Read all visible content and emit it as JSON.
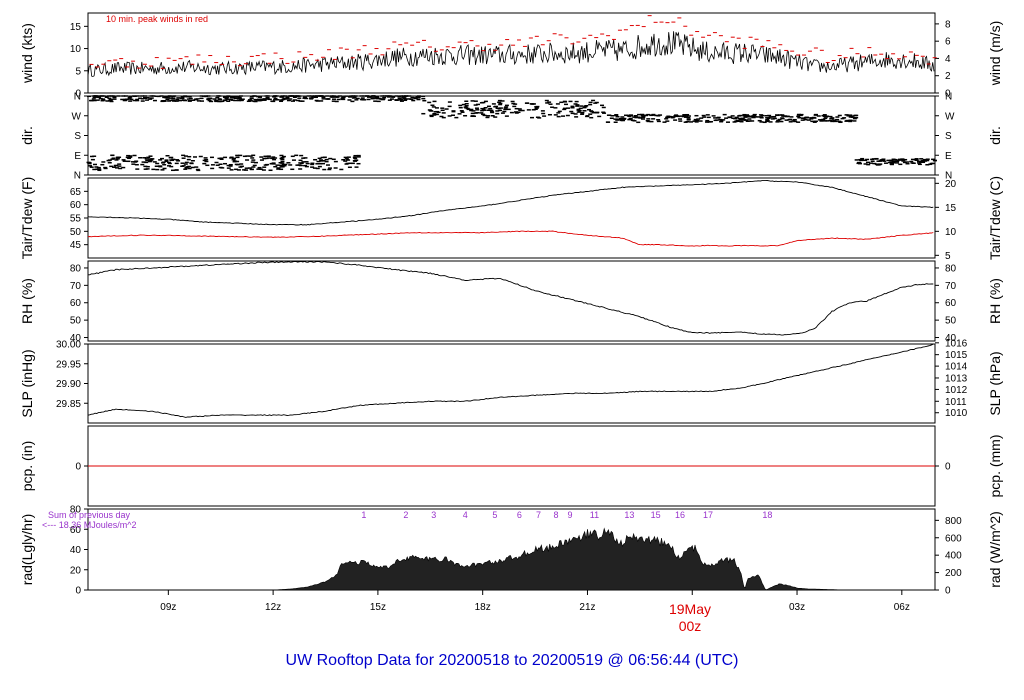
{
  "title": "UW Rooftop Data for 20200518  to  20200519 @ 06:56:44  (UTC)",
  "colors": {
    "title": "#0000cc",
    "red": "#dd0000",
    "purple": "#9933cc",
    "line": "#000000"
  },
  "x_axis": {
    "hour_start": 6.7,
    "hour_end": 30.95,
    "ticks": [
      {
        "hour": 9,
        "label": "09z"
      },
      {
        "hour": 12,
        "label": "12z"
      },
      {
        "hour": 15,
        "label": "15z"
      },
      {
        "hour": 18,
        "label": "18z"
      },
      {
        "hour": 21,
        "label": "21z"
      },
      {
        "hour": 24,
        "label": "00z"
      },
      {
        "hour": 27,
        "label": "03z"
      },
      {
        "hour": 30,
        "label": "06z"
      }
    ],
    "date_marker": {
      "hour": 24,
      "line1": "19May",
      "line2": "00z"
    }
  },
  "chart_data": [
    {
      "panel": "wind",
      "type": "line",
      "ylabel": "wind (kts)",
      "ylabel_right": "wind (m/s)",
      "ylim": [
        0,
        18
      ],
      "yticks": [
        0,
        5,
        10,
        15
      ],
      "yticks_right": [
        {
          "label": "0",
          "value": 0
        },
        {
          "label": "2",
          "value": 3.89
        },
        {
          "label": "4",
          "value": 7.78
        },
        {
          "label": "6",
          "value": 11.66
        },
        {
          "label": "8",
          "value": 15.55
        }
      ],
      "annotation": "10 min. peak winds in red",
      "series": [
        {
          "x": [
            6.7,
            7.5,
            8.5,
            9.5,
            10.5,
            11.5,
            12.5,
            13.5,
            14.5,
            15.5,
            16.5,
            17.5,
            18.5,
            19.5,
            20.5,
            21.5,
            22,
            22.5,
            23,
            23.5,
            24,
            24.5,
            25,
            25.5,
            26,
            26.5,
            27,
            27.5,
            28,
            28.5,
            29,
            29.5,
            30,
            30.5,
            30.95
          ],
          "y": [
            5,
            5.5,
            5.5,
            5.8,
            5.5,
            5.8,
            6,
            6.5,
            7,
            8,
            8.5,
            8.5,
            8.5,
            8.8,
            9,
            9.5,
            9.5,
            10.5,
            11.5,
            11,
            10,
            9,
            9,
            9,
            8.5,
            8,
            7,
            6,
            6,
            6.5,
            7,
            7.5,
            7.5,
            7,
            6
          ]
        },
        {
          "name": "peak",
          "x": [
            7,
            8,
            9,
            10,
            11,
            12,
            13,
            14,
            15,
            16,
            17,
            18,
            19,
            20,
            21,
            22,
            22.5,
            23,
            23.5,
            24,
            24.5,
            25,
            26,
            27,
            28,
            29,
            30,
            30.5
          ],
          "y": [
            6.5,
            7,
            7,
            7.5,
            7.5,
            8,
            8,
            9,
            10,
            10.5,
            10.5,
            11,
            11,
            12,
            12,
            14,
            15,
            17,
            16,
            14,
            13,
            12,
            11,
            9.5,
            8,
            9,
            9,
            8
          ]
        }
      ]
    },
    {
      "panel": "dir",
      "type": "scatter",
      "ylabel": "dir.",
      "ylabel_right": "dir.",
      "ylim": [
        0,
        360
      ],
      "yticks": [
        {
          "label": "N",
          "value": 0
        },
        {
          "label": "E",
          "value": 90
        },
        {
          "label": "S",
          "value": 180
        },
        {
          "label": "W",
          "value": 270
        },
        {
          "label": "N",
          "value": 360
        }
      ],
      "clusters": [
        {
          "x0": 6.7,
          "x1": 16.3,
          "center": 350,
          "spread": 15
        },
        {
          "x0": 6.7,
          "x1": 14.6,
          "center": 55,
          "spread": 35
        },
        {
          "x0": 16.3,
          "x1": 21.5,
          "center": 300,
          "spread": 40
        },
        {
          "x0": 21.5,
          "x1": 28.7,
          "center": 258,
          "spread": 18
        },
        {
          "x0": 28.7,
          "x1": 30.95,
          "center": 60,
          "spread": 15
        }
      ]
    },
    {
      "panel": "temp",
      "type": "line",
      "ylabel": "Tair/Tdew (F)",
      "ylabel_right": "Tair/Tdew (C)",
      "ylim": [
        40,
        70
      ],
      "yticks": [
        45,
        50,
        55,
        60,
        65
      ],
      "yticks_right": [
        {
          "label": "5",
          "value": 41
        },
        {
          "label": "10",
          "value": 50
        },
        {
          "label": "15",
          "value": 59
        },
        {
          "label": "20",
          "value": 68
        }
      ],
      "series": [
        {
          "name": "Tair",
          "x": [
            6.7,
            8,
            9,
            10,
            11,
            12,
            13,
            14,
            15,
            16,
            17,
            18,
            19,
            20,
            21,
            22,
            23,
            24,
            25,
            26,
            27,
            28,
            29,
            30,
            30.95
          ],
          "y": [
            55.5,
            55,
            54.5,
            53.5,
            53,
            52.5,
            52.5,
            53.5,
            54.5,
            56,
            58,
            59.5,
            61.5,
            63.5,
            65,
            66.5,
            67,
            67.5,
            68,
            69,
            68.5,
            66.5,
            63,
            59.5,
            59
          ]
        },
        {
          "name": "Tdew",
          "x": [
            6.7,
            8,
            9,
            10,
            11,
            12,
            13,
            14,
            15,
            16,
            17,
            18,
            19,
            20,
            21,
            22,
            22.5,
            23,
            23.5,
            24,
            24.5,
            25,
            25.5,
            26,
            26.5,
            27,
            28,
            29,
            30,
            30.95
          ],
          "y": [
            48,
            48.5,
            48.5,
            48.2,
            48,
            47.8,
            48,
            48.5,
            49,
            49.5,
            49.5,
            49.5,
            50,
            50,
            48.5,
            47.5,
            45,
            45,
            44.8,
            44.5,
            44.7,
            44.5,
            44.7,
            44.5,
            44.7,
            46.5,
            47.5,
            47,
            48.5,
            49.5
          ]
        }
      ]
    },
    {
      "panel": "rh",
      "type": "line",
      "ylabel": "RH (%)",
      "ylabel_right": "RH (%)",
      "ylim": [
        38,
        84
      ],
      "yticks": [
        40,
        50,
        60,
        70,
        80
      ],
      "series": [
        {
          "x": [
            6.7,
            7.5,
            8.5,
            9.5,
            10.5,
            11.5,
            12.5,
            13.5,
            14.5,
            15.5,
            16.5,
            17.5,
            18.5,
            19.5,
            20.5,
            21.5,
            22.5,
            23.5,
            24,
            24.5,
            25,
            25.5,
            26,
            26.5,
            27,
            27.5,
            28,
            28.5,
            29,
            29.5,
            30,
            30.5,
            30.95
          ],
          "y": [
            76,
            79,
            80,
            81,
            82,
            83,
            83.5,
            83.5,
            81.5,
            79,
            77,
            73,
            74,
            67,
            62,
            57,
            52,
            45,
            43,
            42.5,
            43,
            43,
            42,
            41.5,
            42,
            45,
            55,
            60,
            61,
            65,
            69,
            70.5,
            71
          ]
        }
      ]
    },
    {
      "panel": "slp",
      "type": "line",
      "ylabel": "SLP (inHg)",
      "ylabel_right": "SLP (hPa)",
      "ylim": [
        29.8,
        30.0
      ],
      "yticks": [
        {
          "label": "29.85",
          "value": 29.85
        },
        {
          "label": "29.90",
          "value": 29.9
        },
        {
          "label": "29.95",
          "value": 29.95
        },
        {
          "label": "30.00",
          "value": 30.0
        }
      ],
      "yticks_right": [
        {
          "label": "1010",
          "value": 29.826
        },
        {
          "label": "1011",
          "value": 29.855
        },
        {
          "label": "1012",
          "value": 29.885
        },
        {
          "label": "1013",
          "value": 29.914
        },
        {
          "label": "1014",
          "value": 29.944
        },
        {
          "label": "1015",
          "value": 29.973
        },
        {
          "label": "1016",
          "value": 30.003
        }
      ],
      "series": [
        {
          "x": [
            6.7,
            7.5,
            8.5,
            9.5,
            10.5,
            11.5,
            12.5,
            13.5,
            14.5,
            15.5,
            16.5,
            17.5,
            18.5,
            19.5,
            20.5,
            21.5,
            22.5,
            23.5,
            24.5,
            25.5,
            26.5,
            27.5,
            28.5,
            29.5,
            30.5,
            30.95
          ],
          "y": [
            29.82,
            29.835,
            29.83,
            29.815,
            29.82,
            29.82,
            29.82,
            29.83,
            29.845,
            29.85,
            29.855,
            29.855,
            29.865,
            29.87,
            29.875,
            29.875,
            29.88,
            29.88,
            29.88,
            29.89,
            29.91,
            29.93,
            29.95,
            29.97,
            29.99,
            30.0
          ]
        }
      ]
    },
    {
      "panel": "pcp",
      "type": "line",
      "ylabel": "pcp. (in)",
      "ylabel_right": "pcp. (mm)",
      "ylim": [
        -1,
        1
      ],
      "yticks": [
        {
          "label": "0",
          "value": 0
        }
      ],
      "yticks_right": [
        {
          "label": "0",
          "value": 0
        }
      ],
      "series": [
        {
          "x": [
            6.7,
            30.95
          ],
          "y": [
            0,
            0
          ]
        }
      ]
    },
    {
      "panel": "rad",
      "type": "area",
      "ylabel": "rad(Lgly/hr)",
      "ylabel_right": "rad (W/m^2)",
      "ylim": [
        0,
        80
      ],
      "yticks": [
        0,
        20,
        40,
        60,
        80
      ],
      "yticks_right": [
        {
          "label": "0",
          "value": 0
        },
        {
          "label": "200",
          "value": 17.2
        },
        {
          "label": "400",
          "value": 34.4
        },
        {
          "label": "600",
          "value": 51.6
        },
        {
          "label": "800",
          "value": 68.8
        }
      ],
      "note_line1": "Sum of previous day",
      "note_line2": "<--- 18.36 MJoules/m^2",
      "hour_markers": [
        {
          "hour": 14.6,
          "label": "1"
        },
        {
          "hour": 15.8,
          "label": "2"
        },
        {
          "hour": 16.6,
          "label": "3"
        },
        {
          "hour": 17.5,
          "label": "4"
        },
        {
          "hour": 18.35,
          "label": "5"
        },
        {
          "hour": 19.05,
          "label": "6"
        },
        {
          "hour": 19.6,
          "label": "7"
        },
        {
          "hour": 20.1,
          "label": "8"
        },
        {
          "hour": 20.5,
          "label": "9"
        },
        {
          "hour": 21.2,
          "label": "11"
        },
        {
          "hour": 22.2,
          "label": "13"
        },
        {
          "hour": 22.95,
          "label": "15"
        },
        {
          "hour": 23.65,
          "label": "16"
        },
        {
          "hour": 24.45,
          "label": "17"
        },
        {
          "hour": 26.15,
          "label": "18"
        }
      ],
      "series": [
        {
          "x": [
            12,
            12.5,
            13,
            13.5,
            13.8,
            14,
            14.3,
            14.7,
            15,
            15.3,
            15.6,
            16,
            16.3,
            16.6,
            17,
            17.3,
            17.6,
            18,
            18.5,
            19,
            19.5,
            20,
            20.3,
            20.6,
            20.8,
            21,
            21.3,
            21.6,
            21.9,
            22.1,
            22.3,
            22.5,
            22.7,
            23,
            23.3,
            23.6,
            23.9,
            24.1,
            24.3,
            24.6,
            24.9,
            25.2,
            25.4,
            25.5,
            25.6,
            25.9,
            26.1,
            26.5,
            26.8,
            27,
            27.3,
            27.6,
            28,
            28.4
          ],
          "y": [
            0,
            1,
            3,
            8,
            14,
            28,
            27,
            27,
            22,
            22,
            30,
            33,
            30,
            31,
            30,
            24,
            24,
            26,
            29,
            33,
            40,
            42,
            46,
            52,
            49,
            56,
            54,
            60,
            44,
            50,
            51,
            52,
            50,
            48,
            46,
            32,
            40,
            41,
            27,
            25,
            30,
            29,
            15,
            0,
            12,
            14,
            0,
            6,
            4,
            2,
            1,
            0.8,
            0.4,
            0
          ]
        }
      ]
    }
  ]
}
